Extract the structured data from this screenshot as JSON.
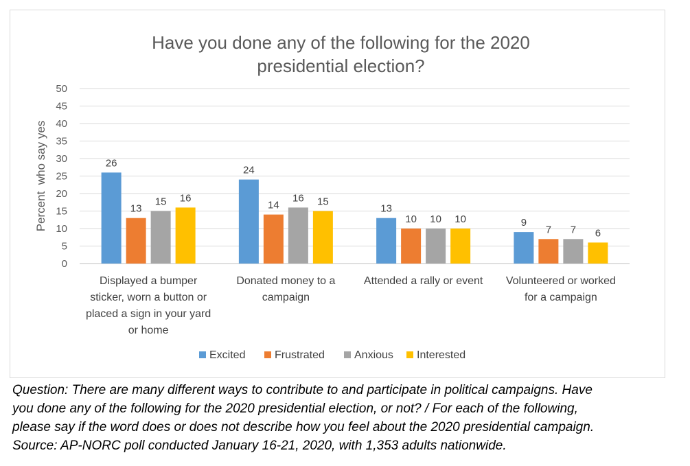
{
  "chart_data": {
    "type": "bar",
    "title": "Have you done any of the following for the 2020\npresidential election?",
    "ylabel": "Percent  who say yes",
    "xlabel": "",
    "ylim": [
      0,
      50
    ],
    "yticks": [
      0,
      5,
      10,
      15,
      20,
      25,
      30,
      35,
      40,
      45,
      50
    ],
    "grid": true,
    "legend_position": "bottom",
    "categories": [
      "Displayed a bumper sticker, worn a button or placed a sign in your yard or home",
      "Donated money to a campaign",
      "Attended a rally or event",
      "Volunteered or worked for a campaign"
    ],
    "category_lines": [
      [
        "Displayed a bumper",
        "sticker, worn a button or",
        "placed a sign in your yard",
        "or home"
      ],
      [
        "Donated money to a",
        "campaign"
      ],
      [
        "Attended a rally or event"
      ],
      [
        "Volunteered or worked",
        "for a campaign"
      ]
    ],
    "series": [
      {
        "name": "Excited",
        "color": "#5b9bd5",
        "values": [
          26,
          24,
          13,
          9
        ]
      },
      {
        "name": "Frustrated",
        "color": "#ed7d31",
        "values": [
          13,
          14,
          10,
          7
        ]
      },
      {
        "name": "Anxious",
        "color": "#a5a5a5",
        "values": [
          15,
          16,
          10,
          7
        ]
      },
      {
        "name": "Interested",
        "color": "#ffc000",
        "values": [
          16,
          15,
          10,
          6
        ]
      }
    ]
  },
  "caption": {
    "lines": [
      "Question:  There are many different ways to contribute to and participate in political campaigns. Have",
      "you done any of the following for the 2020 presidential election, or not? / For each of the following,",
      "please say if the word does or does not describe how you feel about the 2020 presidential campaign.",
      "Source: AP-NORC poll conducted January 16-21, 2020, with 1,353 adults nationwide."
    ]
  }
}
